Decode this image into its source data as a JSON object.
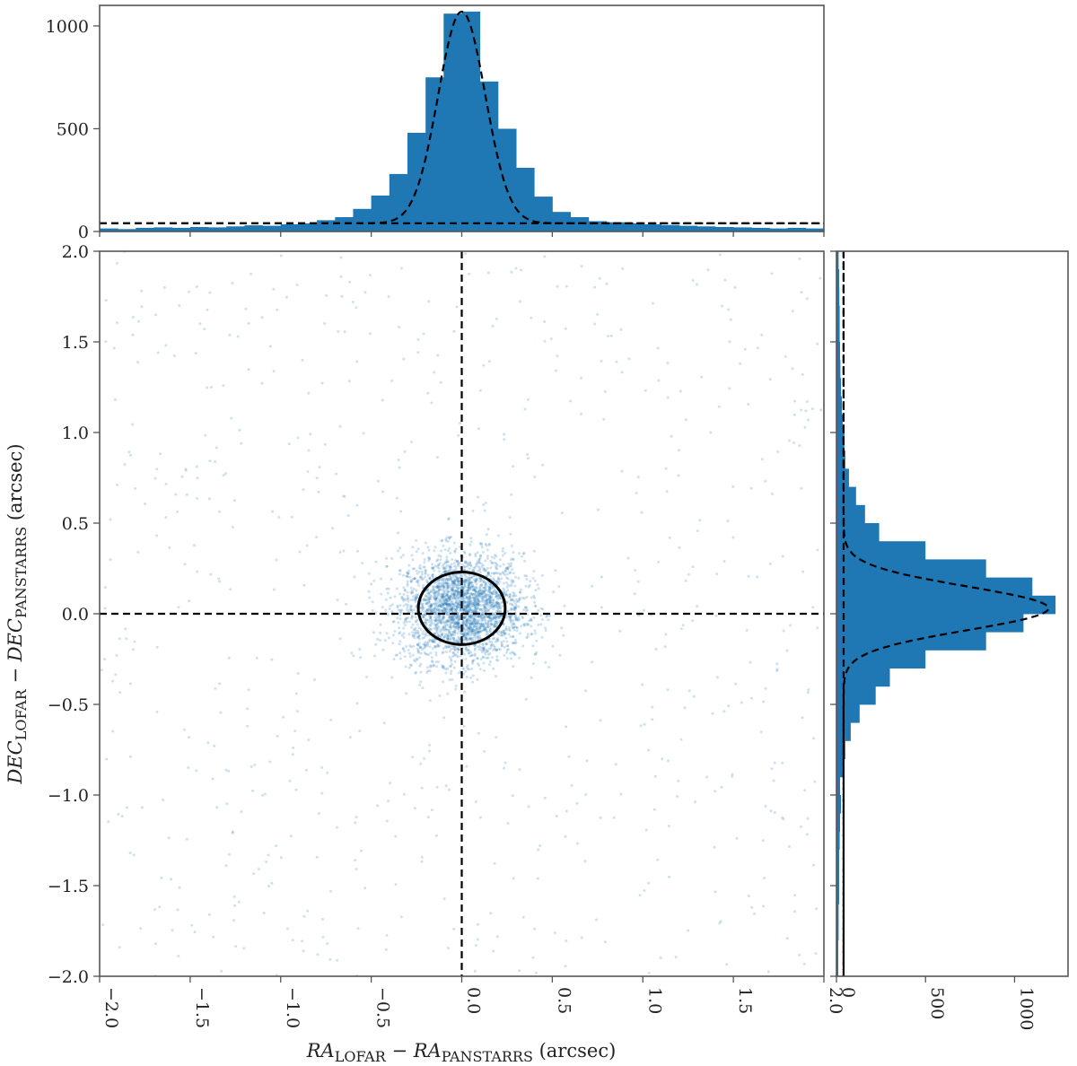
{
  "chart_data": [
    {
      "id": "top-histogram",
      "type": "bar",
      "ylim": [
        0,
        1100
      ],
      "xlim": [
        -2.0,
        2.0
      ],
      "yticks": [
        "0",
        "500",
        "1000"
      ],
      "bin_width": 0.1,
      "bin_centers": [
        -1.95,
        -1.85,
        -1.75,
        -1.65,
        -1.55,
        -1.45,
        -1.35,
        -1.25,
        -1.15,
        -1.05,
        -0.95,
        -0.85,
        -0.75,
        -0.65,
        -0.55,
        -0.45,
        -0.35,
        -0.25,
        -0.15,
        -0.05,
        0.05,
        0.15,
        0.25,
        0.35,
        0.45,
        0.55,
        0.65,
        0.75,
        0.85,
        0.95,
        1.05,
        1.15,
        1.25,
        1.35,
        1.45,
        1.55,
        1.65,
        1.75,
        1.85,
        1.95
      ],
      "values": [
        15,
        12,
        18,
        20,
        18,
        22,
        20,
        25,
        30,
        28,
        35,
        40,
        55,
        70,
        110,
        175,
        280,
        480,
        750,
        1060,
        1070,
        730,
        500,
        310,
        170,
        95,
        70,
        50,
        45,
        40,
        35,
        32,
        28,
        25,
        22,
        20,
        18,
        15,
        18,
        15
      ],
      "fit": {
        "amplitude": 1030,
        "mean": 0.0,
        "sigma": 0.13,
        "baseline": 40
      },
      "baseline_line": 40
    },
    {
      "id": "main-scatter",
      "type": "scatter",
      "xlim": [
        -2.0,
        2.0
      ],
      "ylim": [
        -2.0,
        2.0
      ],
      "xticks": [
        "−2.0",
        "−1.5",
        "−1.0",
        "−0.5",
        "0.0",
        "0.5",
        "1.0",
        "1.5",
        "2.0"
      ],
      "yticks": [
        "−2.0",
        "−1.5",
        "−1.0",
        "−0.5",
        "0.0",
        "0.5",
        "1.0",
        "1.5",
        "2.0"
      ],
      "xlabel": {
        "main": "RA",
        "sub": "LOFAR",
        "minus": " − ",
        "main2": "RA",
        "sub2": "PANSTARRS",
        "unit": " (arcsec)"
      },
      "ylabel": {
        "main": "DEC",
        "sub": "LOFAR",
        "minus": " − ",
        "main2": "DEC",
        "sub2": "PANSTARRS",
        "unit": " (arcsec)"
      },
      "ellipse": {
        "cx": 0.0,
        "cy": 0.03,
        "rx": 0.24,
        "ry": 0.2
      },
      "ref_lines": {
        "x": 0.0,
        "y": 0.0
      }
    },
    {
      "id": "right-histogram",
      "type": "bar",
      "orientation": "horizontal",
      "xlim": [
        0,
        1300
      ],
      "ylim": [
        -2.0,
        2.0
      ],
      "xticks": [
        "0",
        "500",
        "1000"
      ],
      "bin_width": 0.1,
      "bin_centers": [
        -1.95,
        -1.85,
        -1.75,
        -1.65,
        -1.55,
        -1.45,
        -1.35,
        -1.25,
        -1.15,
        -1.05,
        -0.95,
        -0.85,
        -0.75,
        -0.65,
        -0.55,
        -0.45,
        -0.35,
        -0.25,
        -0.15,
        -0.05,
        0.05,
        0.15,
        0.25,
        0.35,
        0.45,
        0.55,
        0.65,
        0.75,
        0.85,
        0.95,
        1.05,
        1.15,
        1.25,
        1.35,
        1.45,
        1.55,
        1.65,
        1.75,
        1.85,
        1.95
      ],
      "values": [
        10,
        10,
        12,
        12,
        15,
        15,
        15,
        18,
        20,
        25,
        20,
        40,
        50,
        80,
        130,
        220,
        300,
        500,
        840,
        1050,
        1230,
        1100,
        840,
        500,
        240,
        160,
        110,
        70,
        50,
        45,
        35,
        30,
        25,
        22,
        20,
        18,
        18,
        16,
        15,
        12
      ],
      "fit": {
        "amplitude": 1150,
        "mean": 0.03,
        "sigma": 0.12,
        "baseline": 40
      },
      "baseline_line": 40
    }
  ]
}
